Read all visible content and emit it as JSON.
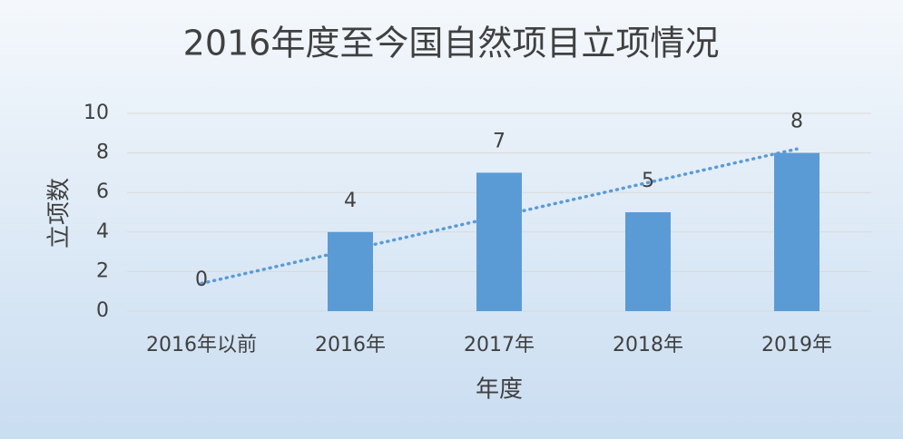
{
  "chart_data": {
    "type": "bar",
    "title": "2016年度至今国自然项目立项情况",
    "x_label": "年度",
    "y_label": "立项数",
    "categories": [
      "2016年以前",
      "2016年",
      "2017年",
      "2018年",
      "2019年"
    ],
    "values": [
      0,
      4,
      7,
      5,
      8
    ],
    "color": "#5b9bd5",
    "ylim": [
      0,
      10
    ],
    "yticks": [
      0,
      2,
      4,
      6,
      8,
      10
    ],
    "grid": true,
    "trendline": "linear",
    "data_labels": true
  }
}
